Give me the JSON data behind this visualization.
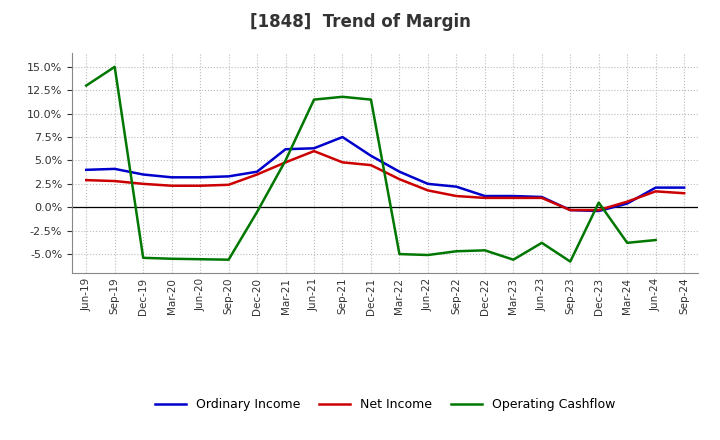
{
  "title": "[1848]  Trend of Margin",
  "x_labels": [
    "Jun-19",
    "Sep-19",
    "Dec-19",
    "Mar-20",
    "Jun-20",
    "Sep-20",
    "Dec-20",
    "Mar-21",
    "Jun-21",
    "Sep-21",
    "Dec-21",
    "Mar-22",
    "Jun-22",
    "Sep-22",
    "Dec-22",
    "Mar-23",
    "Jun-23",
    "Sep-23",
    "Dec-23",
    "Mar-24",
    "Jun-24",
    "Sep-24"
  ],
  "ordinary_income": [
    4.0,
    4.1,
    3.5,
    3.2,
    3.2,
    3.3,
    3.8,
    6.2,
    6.3,
    7.5,
    5.5,
    3.8,
    2.5,
    2.2,
    1.2,
    1.2,
    1.1,
    -0.3,
    -0.4,
    0.4,
    2.1,
    2.1
  ],
  "net_income": [
    2.9,
    2.8,
    2.5,
    2.3,
    2.3,
    2.4,
    3.5,
    4.8,
    6.0,
    4.8,
    4.5,
    3.0,
    1.8,
    1.2,
    1.0,
    1.0,
    1.0,
    -0.3,
    -0.3,
    0.6,
    1.7,
    1.5
  ],
  "operating_cashflow": [
    13.0,
    15.0,
    -5.4,
    -5.5,
    -5.55,
    -5.6,
    -0.5,
    5.0,
    11.5,
    11.8,
    11.5,
    -5.0,
    -5.1,
    -4.7,
    -4.6,
    -5.6,
    -3.8,
    -5.8,
    0.5,
    -3.8,
    -3.5,
    null
  ],
  "ylim": [
    -7.0,
    16.5
  ],
  "yticks": [
    -5.0,
    -2.5,
    0.0,
    2.5,
    5.0,
    7.5,
    10.0,
    12.5,
    15.0
  ],
  "line_colors": {
    "ordinary_income": "#0000cc",
    "net_income": "#cc0000",
    "operating_cashflow": "#007700"
  },
  "legend_labels": [
    "Ordinary Income",
    "Net Income",
    "Operating Cashflow"
  ],
  "background_color": "#ffffff",
  "plot_bg_color": "#ffffff",
  "grid_color": "#bbbbbb",
  "title_color": "#333333"
}
